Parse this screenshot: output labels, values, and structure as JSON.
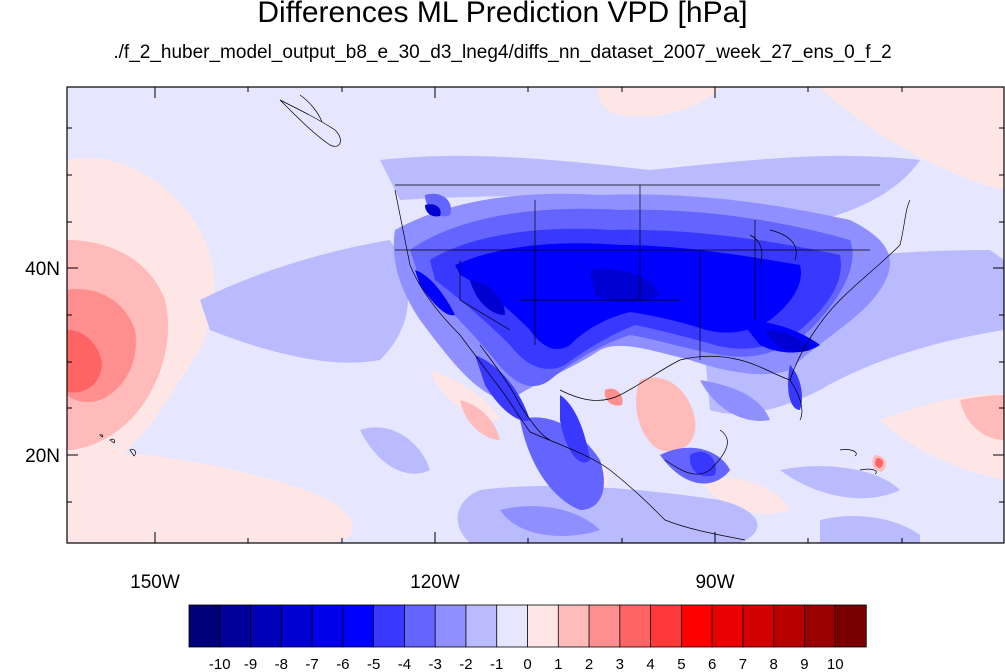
{
  "title": "Differences ML Prediction VPD [hPa]",
  "subtitle": "./f_2_huber_model_output_b8_e_30_d3_lneg4/diffs_nn_dataset_2007_week_27_ens_0_f_2",
  "axes": {
    "lat_ticks": [
      "40N",
      "20N"
    ],
    "lon_ticks": [
      "150W",
      "120W",
      "90W"
    ]
  },
  "colorbar": {
    "labels": [
      "-10",
      "-9",
      "-8",
      "-7",
      "-6",
      "-5",
      "-4",
      "-3",
      "-2",
      "-1",
      "0",
      "1",
      "2",
      "3",
      "4",
      "5",
      "6",
      "7",
      "8",
      "9",
      "10"
    ],
    "colors": [
      "#00007a",
      "#00009a",
      "#0000b8",
      "#0000d2",
      "#0000ea",
      "#0000ff",
      "#3838ff",
      "#6464ff",
      "#8f8fff",
      "#babaff",
      "#e6e6ff",
      "#ffe6e6",
      "#ffbaba",
      "#ff8f8f",
      "#ff6464",
      "#ff3838",
      "#ff0000",
      "#ea0000",
      "#d20000",
      "#b80000",
      "#9a0000",
      "#7a0000"
    ]
  },
  "palette": {
    "background_pale_blue": "#e6e6ff",
    "pale_red": "#ffe6e6",
    "strong_blue": "#0000ff"
  }
}
